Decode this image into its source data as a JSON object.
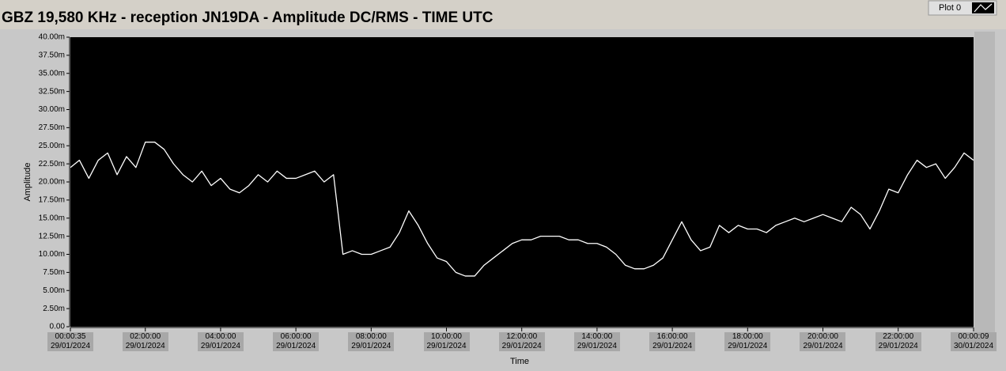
{
  "chart_data": {
    "type": "line",
    "title": "GBZ  19,580 KHz - reception JN19DA -  Amplitude DC/RMS   - TIME UTC",
    "xlabel": "Time",
    "ylabel": "Amplitude",
    "legend": "top-right",
    "background": "#000000",
    "x": [
      0.01,
      0.25,
      0.5,
      0.75,
      1,
      1.25,
      1.5,
      1.75,
      2,
      2.25,
      2.5,
      2.75,
      3,
      3.25,
      3.5,
      3.75,
      4,
      4.25,
      4.5,
      4.75,
      5,
      5.25,
      5.5,
      5.75,
      6,
      6.25,
      6.5,
      6.75,
      7,
      7.25,
      7.5,
      7.75,
      8,
      8.25,
      8.5,
      8.75,
      9,
      9.25,
      9.5,
      9.75,
      10,
      10.25,
      10.5,
      10.75,
      11,
      11.25,
      11.5,
      11.75,
      12,
      12.25,
      12.5,
      12.75,
      13,
      13.25,
      13.5,
      13.75,
      14,
      14.25,
      14.5,
      14.75,
      15,
      15.25,
      15.5,
      15.75,
      16,
      16.25,
      16.5,
      16.75,
      17,
      17.25,
      17.5,
      17.75,
      18,
      18.25,
      18.5,
      18.75,
      19,
      19.25,
      19.5,
      19.75,
      20,
      20.25,
      20.5,
      20.75,
      21,
      21.25,
      21.5,
      21.75,
      22,
      22.25,
      22.5,
      22.75,
      23,
      23.25,
      23.5,
      23.75,
      24
    ],
    "series": [
      {
        "name": "Plot 0",
        "color": "#ffffff",
        "values": [
          22,
          23,
          20.5,
          23,
          24,
          21,
          23.5,
          22,
          25.5,
          25.5,
          24.5,
          22.5,
          21,
          20,
          21.5,
          19.5,
          20.5,
          19,
          18.5,
          19.5,
          21,
          20,
          21.5,
          20.5,
          20.5,
          21,
          21.5,
          20,
          21,
          10,
          10.5,
          10,
          10,
          10.5,
          11,
          13,
          16,
          14,
          11.5,
          9.5,
          9,
          7.5,
          7,
          7,
          8.5,
          9.5,
          10.5,
          11.5,
          12,
          12,
          12.5,
          12.5,
          12.5,
          12,
          12,
          11.5,
          11.5,
          11,
          10,
          8.5,
          8,
          8,
          8.5,
          9.5,
          12,
          14.5,
          12,
          10.5,
          11,
          14,
          13,
          14,
          13.5,
          13.5,
          13,
          14,
          14.5,
          15,
          14.5,
          15,
          15.5,
          15,
          14.5,
          16.5,
          15.5,
          13.5,
          16,
          19,
          18.5,
          21,
          23,
          22,
          22.5,
          20.5,
          22,
          24,
          23
        ]
      }
    ],
    "xlim": [
      0.0097,
      24.0025
    ],
    "ylim": [
      0,
      40
    ],
    "xticks": [
      {
        "value": 0.0097,
        "label": "00:00:35\n29/01/2024"
      },
      {
        "value": 2,
        "label": "02:00:00\n29/01/2024"
      },
      {
        "value": 4,
        "label": "04:00:00\n29/01/2024"
      },
      {
        "value": 6,
        "label": "06:00:00\n29/01/2024"
      },
      {
        "value": 8,
        "label": "08:00:00\n29/01/2024"
      },
      {
        "value": 10,
        "label": "10:00:00\n29/01/2024"
      },
      {
        "value": 12,
        "label": "12:00:00\n29/01/2024"
      },
      {
        "value": 14,
        "label": "14:00:00\n29/01/2024"
      },
      {
        "value": 16,
        "label": "16:00:00\n29/01/2024"
      },
      {
        "value": 18,
        "label": "18:00:00\n29/01/2024"
      },
      {
        "value": 20,
        "label": "20:00:00\n29/01/2024"
      },
      {
        "value": 22,
        "label": "22:00:00\n29/01/2024"
      },
      {
        "value": 24.0025,
        "label": "00:00:09\n30/01/2024"
      }
    ],
    "yticks": [
      {
        "value": 0,
        "label": "0.00"
      },
      {
        "value": 2.5,
        "label": "2.50m"
      },
      {
        "value": 5,
        "label": "5.00m"
      },
      {
        "value": 7.5,
        "label": "7.50m"
      },
      {
        "value": 10,
        "label": "10.00m"
      },
      {
        "value": 12.5,
        "label": "12.50m"
      },
      {
        "value": 15,
        "label": "15.00m"
      },
      {
        "value": 17.5,
        "label": "17.50m"
      },
      {
        "value": 20,
        "label": "20.00m"
      },
      {
        "value": 22.5,
        "label": "22.50m"
      },
      {
        "value": 25,
        "label": "25.00m"
      },
      {
        "value": 27.5,
        "label": "27.50m"
      },
      {
        "value": 30,
        "label": "30.00m"
      },
      {
        "value": 32.5,
        "label": "32.50m"
      },
      {
        "value": 35,
        "label": "35.00m"
      },
      {
        "value": 37.5,
        "label": "37.50m"
      },
      {
        "value": 40,
        "label": "40.00m"
      }
    ]
  }
}
